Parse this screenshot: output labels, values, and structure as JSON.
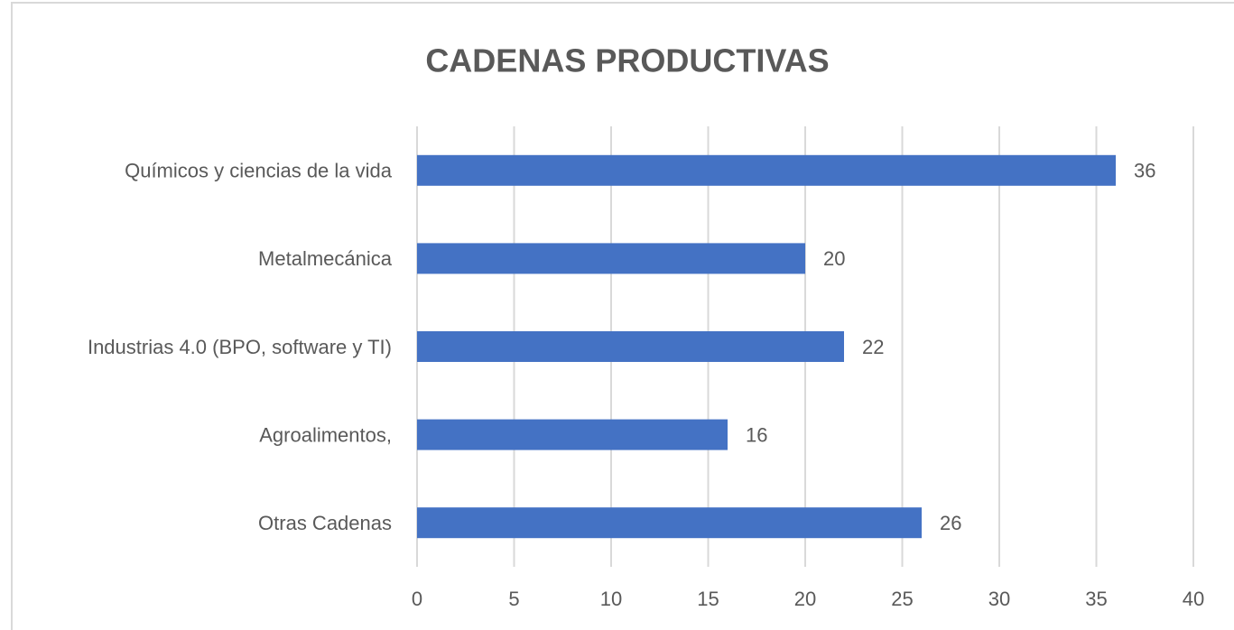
{
  "chart_data": {
    "type": "bar",
    "orientation": "horizontal",
    "title": "CADENAS PRODUCTIVAS",
    "categories": [
      "Químicos y ciencias de la vida",
      "Metalmecánica",
      "Industrias 4.0 (BPO, software y TI)",
      "Agroalimentos,",
      "Otras Cadenas"
    ],
    "values": [
      36,
      20,
      22,
      16,
      26
    ],
    "color": "#4472c4",
    "xlim": [
      0,
      40
    ],
    "xticks": [
      0,
      5,
      10,
      15,
      20,
      25,
      30,
      35,
      40
    ],
    "grid": true
  }
}
